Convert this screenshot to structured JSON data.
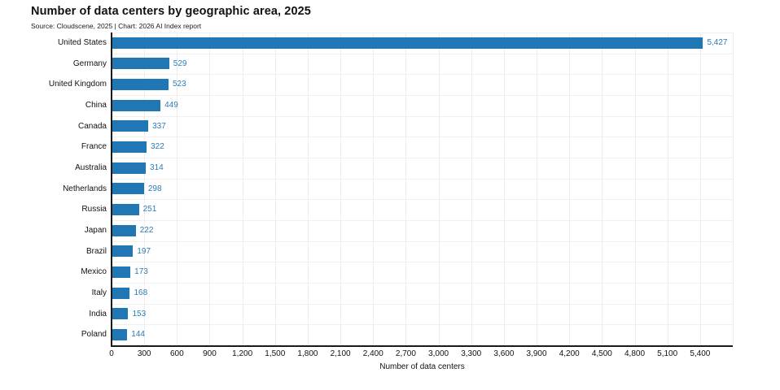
{
  "header": {
    "title": "Number of data centers by geographic area, 2025",
    "subtitle": "Source: Cloudscene, 2025 | Chart: 2026 AI Index report"
  },
  "colors": {
    "bar": "#2077b4",
    "value_label": "#2a7cba",
    "axis": "#1a1a1a",
    "grid": "#ededed",
    "text": "#111111"
  },
  "chart_data": {
    "type": "bar",
    "orientation": "horizontal",
    "title": "Number of data centers by geographic area, 2025",
    "subtitle": "Source: Cloudscene, 2025 | Chart: 2026 AI Index report",
    "xlabel": "Number of data centers",
    "ylabel": "",
    "categories": [
      "United States",
      "Germany",
      "United Kingdom",
      "China",
      "Canada",
      "France",
      "Australia",
      "Netherlands",
      "Russia",
      "Japan",
      "Brazil",
      "Mexico",
      "Italy",
      "India",
      "Poland"
    ],
    "values": [
      5427,
      529,
      523,
      449,
      337,
      322,
      314,
      298,
      251,
      222,
      197,
      173,
      168,
      153,
      144
    ],
    "value_labels": [
      "5,427",
      "529",
      "523",
      "449",
      "337",
      "322",
      "314",
      "298",
      "251",
      "222",
      "197",
      "173",
      "168",
      "153",
      "144"
    ],
    "xlim": [
      0,
      5700
    ],
    "xticks": [
      0,
      300,
      600,
      900,
      1200,
      1500,
      1800,
      2100,
      2400,
      2700,
      3000,
      3300,
      3600,
      3900,
      4200,
      4500,
      4800,
      5100,
      5400
    ],
    "xtick_labels": [
      "0",
      "300",
      "600",
      "900",
      "1,200",
      "1,500",
      "1,800",
      "2,100",
      "2,400",
      "2,700",
      "3,000",
      "3,300",
      "3,600",
      "3,900",
      "4,200",
      "4,500",
      "4,800",
      "5,100",
      "5,400"
    ],
    "grid": true,
    "legend": false
  }
}
